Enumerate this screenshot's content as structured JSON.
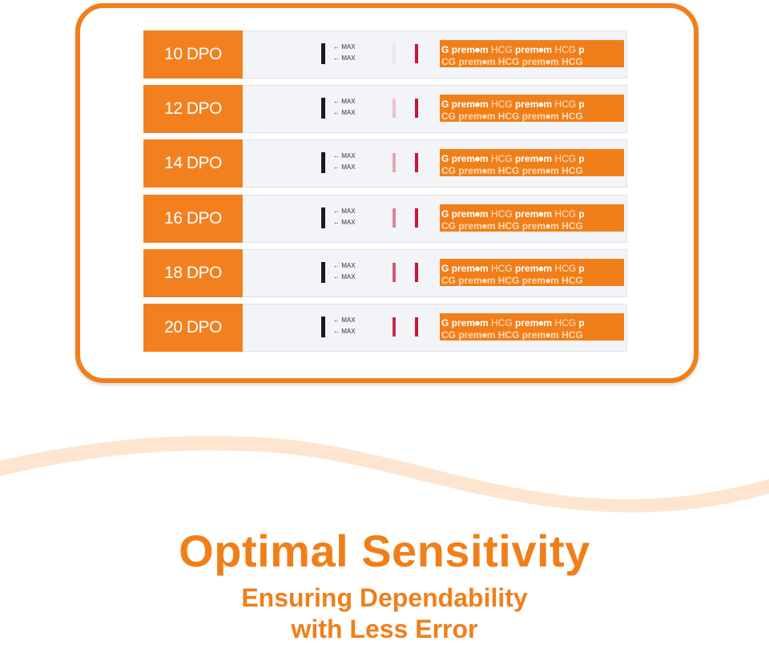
{
  "colors": {
    "accent": "#f07f1a",
    "control_line": "#c2163c"
  },
  "strip_text": {
    "max": "MAX",
    "brand": "prem⦁m",
    "hcg": "HCG"
  },
  "rows": [
    {
      "label": "10 DPO",
      "test_line_intensity": 0.08
    },
    {
      "label": "12 DPO",
      "test_line_intensity": 0.22
    },
    {
      "label": "14 DPO",
      "test_line_intensity": 0.35
    },
    {
      "label": "16 DPO",
      "test_line_intensity": 0.5
    },
    {
      "label": "18 DPO",
      "test_line_intensity": 0.7
    },
    {
      "label": "20 DPO",
      "test_line_intensity": 0.9
    }
  ],
  "headline": "Optimal Sensitivity",
  "subline1": "Ensuring Dependability",
  "subline2": "with Less Error"
}
